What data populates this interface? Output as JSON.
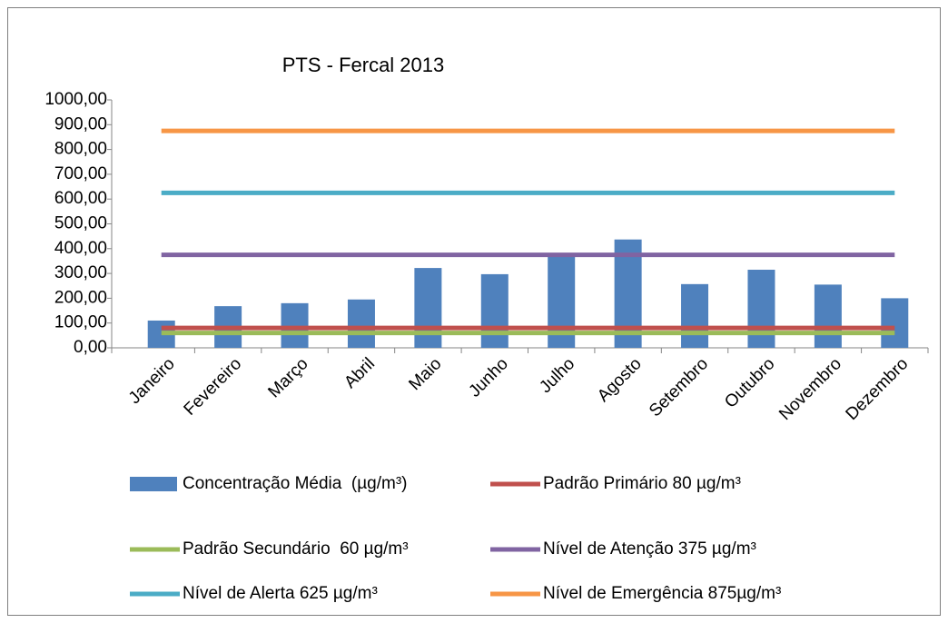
{
  "chart_data": {
    "type": "bar",
    "title": "PTS - Fercal 2013",
    "categories": [
      "Janeiro",
      "Fevereiro",
      "Março",
      "Abril",
      "Maio",
      "Junho",
      "Julho",
      "Agosto",
      "Setembro",
      "Outubro",
      "Novembro",
      "Dezembro"
    ],
    "series": [
      {
        "name": "Concentração Média  (µg/m³)",
        "type": "bar",
        "color": "#4f81bd",
        "values": [
          110,
          168,
          180,
          195,
          322,
          297,
          378,
          437,
          257,
          315,
          255,
          200
        ]
      },
      {
        "name": "Padrão Primário 80 µg/m³",
        "type": "line",
        "color": "#c0504d",
        "values": [
          80,
          80,
          80,
          80,
          80,
          80,
          80,
          80,
          80,
          80,
          80,
          80
        ]
      },
      {
        "name": "Padrão Secundário  60 µg/m³",
        "type": "line",
        "color": "#9bbb59",
        "values": [
          60,
          60,
          60,
          60,
          60,
          60,
          60,
          60,
          60,
          60,
          60,
          60
        ]
      },
      {
        "name": "Nível de Atenção 375 µg/m³",
        "type": "line",
        "color": "#8064a2",
        "values": [
          375,
          375,
          375,
          375,
          375,
          375,
          375,
          375,
          375,
          375,
          375,
          375
        ]
      },
      {
        "name": "Nível de Alerta 625 µg/m³",
        "type": "line",
        "color": "#4bacc6",
        "values": [
          625,
          625,
          625,
          625,
          625,
          625,
          625,
          625,
          625,
          625,
          625,
          625
        ]
      },
      {
        "name": "Nível de Emergência 875µg/m³",
        "type": "line",
        "color": "#f79646",
        "values": [
          875,
          875,
          875,
          875,
          875,
          875,
          875,
          875,
          875,
          875,
          875,
          875
        ]
      }
    ],
    "ylim": [
      0,
      1000
    ],
    "yticks": [
      {
        "value": 0,
        "label": "0,00"
      },
      {
        "value": 100,
        "label": "100,00"
      },
      {
        "value": 200,
        "label": "200,00"
      },
      {
        "value": 300,
        "label": "300,00"
      },
      {
        "value": 400,
        "label": "400,00"
      },
      {
        "value": 500,
        "label": "500,00"
      },
      {
        "value": 600,
        "label": "600,00"
      },
      {
        "value": 700,
        "label": "700,00"
      },
      {
        "value": 800,
        "label": "800,00"
      },
      {
        "value": 900,
        "label": "900,00"
      },
      {
        "value": 1000,
        "label": "1000,00"
      }
    ],
    "grid": false
  }
}
